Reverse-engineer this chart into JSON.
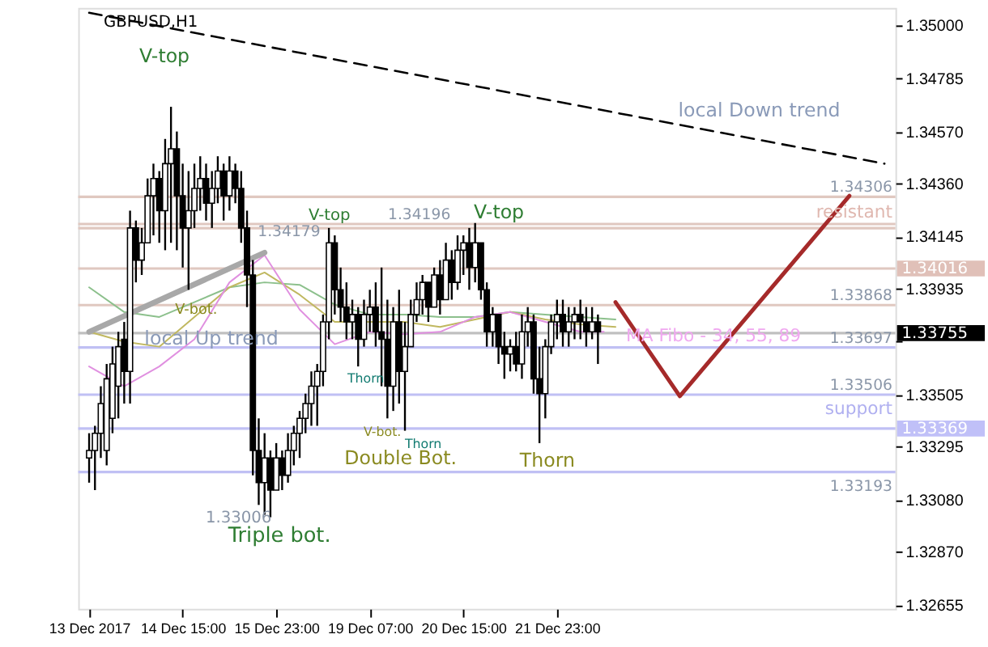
{
  "chart_data": {
    "type": "candlestick",
    "title": "GBPUSD,H1",
    "categories": [
      "13 Dec 2017",
      null,
      null,
      null,
      null,
      null,
      null,
      null,
      null,
      null,
      null,
      null,
      null,
      null,
      null,
      null,
      "14 Dec 15:00",
      null,
      null,
      null,
      null,
      null,
      null,
      null,
      null,
      null,
      null,
      null,
      null,
      null,
      null,
      null,
      "15 Dec 23:00",
      null,
      null,
      null,
      null,
      null,
      null,
      null,
      null,
      null,
      null,
      null,
      null,
      null,
      null,
      null,
      "19 Dec 07:00",
      null,
      null,
      null,
      null,
      null,
      null,
      null,
      null,
      null,
      null,
      null,
      null,
      null,
      null,
      null,
      "20 Dec 15:00",
      null,
      null,
      null,
      null,
      null,
      null,
      null,
      null,
      null,
      null,
      null,
      null,
      null,
      null,
      null,
      "21 Dec 23:00",
      null,
      null,
      null,
      null,
      null,
      null,
      null,
      null,
      null,
      null,
      null,
      null,
      null,
      null,
      null,
      null,
      null,
      null,
      null,
      null,
      null,
      null,
      null,
      null,
      null,
      null,
      null,
      null,
      null,
      null,
      null,
      null,
      null,
      null,
      null,
      null,
      null,
      null,
      null,
      null,
      null,
      null,
      null,
      null,
      null,
      null,
      null,
      null,
      null,
      null,
      null,
      null,
      null,
      null,
      null,
      null
    ],
    "ohlc": [
      [
        1.3325,
        1.3335,
        1.3315,
        1.3328
      ],
      [
        1.3328,
        1.3338,
        1.3312,
        1.3335
      ],
      [
        1.3335,
        1.3354,
        1.3325,
        1.3347
      ],
      [
        1.3328,
        1.3363,
        1.3322,
        1.3357
      ],
      [
        1.3341,
        1.337,
        1.3335,
        1.3363
      ],
      [
        1.3354,
        1.3376,
        1.3341,
        1.337
      ],
      [
        1.3373,
        1.338,
        1.3347,
        1.336
      ],
      [
        1.336,
        1.3425,
        1.3347,
        1.3418
      ],
      [
        1.3418,
        1.3421,
        1.3396,
        1.3405
      ],
      [
        1.3405,
        1.3418,
        1.3399,
        1.3412
      ],
      [
        1.3412,
        1.3438,
        1.3412,
        1.3431
      ],
      [
        1.3431,
        1.3444,
        1.3415,
        1.3438
      ],
      [
        1.3438,
        1.3441,
        1.3412,
        1.3425
      ],
      [
        1.3425,
        1.3454,
        1.3409,
        1.3444
      ],
      [
        1.3444,
        1.3467,
        1.3412,
        1.345
      ],
      [
        1.345,
        1.3457,
        1.3409,
        1.3431
      ],
      [
        1.3431,
        1.3444,
        1.3402,
        1.3418
      ],
      [
        1.3418,
        1.3441,
        1.3393,
        1.3425
      ],
      [
        1.3425,
        1.3444,
        1.3418,
        1.3434
      ],
      [
        1.3434,
        1.3447,
        1.3425,
        1.3438
      ],
      [
        1.3438,
        1.3444,
        1.3421,
        1.3428
      ],
      [
        1.3428,
        1.3441,
        1.3418,
        1.3434
      ],
      [
        1.3434,
        1.3447,
        1.3428,
        1.3441
      ],
      [
        1.3441,
        1.3444,
        1.3421,
        1.3431
      ],
      [
        1.3431,
        1.3447,
        1.3425,
        1.3441
      ],
      [
        1.3441,
        1.3444,
        1.3428,
        1.3434
      ],
      [
        1.3434,
        1.3441,
        1.3412,
        1.3418
      ],
      [
        1.3418,
        1.3425,
        1.3386,
        1.3399
      ],
      [
        1.3399,
        1.3405,
        1.3318,
        1.3328
      ],
      [
        1.3328,
        1.3341,
        1.3306,
        1.3315
      ],
      [
        1.3315,
        1.3335,
        1.3302,
        1.3325
      ],
      [
        1.3325,
        1.3328,
        1.3301,
        1.3312
      ],
      [
        1.3312,
        1.3331,
        1.3312,
        1.3325
      ],
      [
        1.3325,
        1.3328,
        1.3312,
        1.3318
      ],
      [
        1.3318,
        1.3335,
        1.3315,
        1.3328
      ],
      [
        1.3328,
        1.3338,
        1.3322,
        1.3335
      ],
      [
        1.3335,
        1.3344,
        1.3325,
        1.3341
      ],
      [
        1.3341,
        1.3351,
        1.3335,
        1.3347
      ],
      [
        1.3347,
        1.336,
        1.3338,
        1.3354
      ],
      [
        1.3354,
        1.3363,
        1.3338,
        1.336
      ],
      [
        1.336,
        1.3383,
        1.3354,
        1.338
      ],
      [
        1.338,
        1.3418,
        1.3373,
        1.3412
      ],
      [
        1.3412,
        1.3415,
        1.3383,
        1.3393
      ],
      [
        1.3393,
        1.3402,
        1.338,
        1.3386
      ],
      [
        1.3386,
        1.3396,
        1.3373,
        1.338
      ],
      [
        1.338,
        1.3389,
        1.3373,
        1.3383
      ],
      [
        1.3383,
        1.3386,
        1.3362,
        1.3373
      ],
      [
        1.3373,
        1.3389,
        1.337,
        1.3383
      ],
      [
        1.3383,
        1.3393,
        1.3376,
        1.3386
      ],
      [
        1.3386,
        1.3396,
        1.337,
        1.3376
      ],
      [
        1.3376,
        1.3402,
        1.3354,
        1.3373
      ],
      [
        1.3373,
        1.3389,
        1.3341,
        1.3354
      ],
      [
        1.3354,
        1.3386,
        1.3344,
        1.338
      ],
      [
        1.338,
        1.3393,
        1.3347,
        1.336
      ],
      [
        1.336,
        1.338,
        1.3336,
        1.337
      ],
      [
        1.337,
        1.3389,
        1.337,
        1.3383
      ],
      [
        1.3383,
        1.3396,
        1.338,
        1.3389
      ],
      [
        1.3389,
        1.3399,
        1.3383,
        1.3396
      ],
      [
        1.3396,
        1.3396,
        1.338,
        1.3386
      ],
      [
        1.3386,
        1.3402,
        1.3386,
        1.3399
      ],
      [
        1.3399,
        1.3405,
        1.3383,
        1.3389
      ],
      [
        1.3389,
        1.3412,
        1.3389,
        1.3405
      ],
      [
        1.3405,
        1.3409,
        1.3389,
        1.3396
      ],
      [
        1.3396,
        1.3415,
        1.3393,
        1.3409
      ],
      [
        1.3409,
        1.3415,
        1.3399,
        1.3412
      ],
      [
        1.3412,
        1.3418,
        1.3393,
        1.3402
      ],
      [
        1.3402,
        1.342,
        1.3396,
        1.3412
      ],
      [
        1.3412,
        1.3412,
        1.3389,
        1.3393
      ],
      [
        1.3393,
        1.3396,
        1.337,
        1.3376
      ],
      [
        1.3376,
        1.3386,
        1.337,
        1.3383
      ],
      [
        1.3383,
        1.3383,
        1.3363,
        1.337
      ],
      [
        1.337,
        1.3376,
        1.3357,
        1.3367
      ],
      [
        1.3367,
        1.3373,
        1.336,
        1.337
      ],
      [
        1.337,
        1.3376,
        1.336,
        1.3363
      ],
      [
        1.3363,
        1.3383,
        1.3357,
        1.3376
      ],
      [
        1.3376,
        1.3386,
        1.337,
        1.338
      ],
      [
        1.338,
        1.3383,
        1.3351,
        1.3357
      ],
      [
        1.3357,
        1.337,
        1.3331,
        1.3351
      ],
      [
        1.3351,
        1.3373,
        1.3341,
        1.337
      ],
      [
        1.337,
        1.3383,
        1.3367,
        1.338
      ],
      [
        1.338,
        1.3389,
        1.3373,
        1.3383
      ],
      [
        1.3383,
        1.3389,
        1.337,
        1.3376
      ],
      [
        1.3376,
        1.3386,
        1.337,
        1.338
      ],
      [
        1.338,
        1.3386,
        1.3373,
        1.3383
      ],
      [
        1.3383,
        1.3389,
        1.3373,
        1.338
      ],
      [
        1.338,
        1.3386,
        1.337,
        1.3376
      ],
      [
        1.3376,
        1.3386,
        1.3373,
        1.338
      ],
      [
        1.338,
        1.3383,
        1.3363,
        1.3376
      ],
      null,
      null,
      null,
      null,
      null,
      null,
      null,
      null,
      null,
      null,
      null,
      null,
      null,
      null,
      null,
      null,
      null,
      null,
      null,
      null,
      null,
      null,
      null,
      null,
      null,
      null,
      null,
      null,
      null,
      null,
      null,
      null,
      null,
      null,
      null,
      null,
      null,
      null,
      null,
      null,
      null,
      null,
      null,
      null,
      null,
      null,
      null,
      null,
      null
    ],
    "series": [
      {
        "type": "line",
        "color": "#8cc08c",
        "values": [
          1.3394,
          null,
          null,
          null,
          null,
          null,
          1.3384,
          null,
          null,
          null,
          null,
          null,
          1.3382,
          null,
          null,
          null,
          null,
          null,
          1.3388,
          null,
          null,
          null,
          null,
          null,
          1.3394,
          null,
          null,
          null,
          null,
          null,
          1.3396,
          null,
          null,
          null,
          null,
          null,
          1.3395,
          null,
          null,
          null,
          null,
          null,
          1.3387,
          null,
          null,
          null,
          null,
          null,
          1.3383,
          null,
          null,
          null,
          null,
          null,
          1.3383,
          null,
          null,
          null,
          null,
          null,
          1.3382,
          null,
          null,
          null,
          null,
          null,
          1.3382,
          null,
          null,
          null,
          null,
          null,
          1.3384,
          null,
          null,
          null,
          null,
          null,
          1.3383,
          null,
          null,
          null,
          null,
          null,
          1.3382,
          null,
          null,
          null,
          null,
          null,
          1.3381,
          null,
          null,
          null,
          null,
          null,
          null,
          null,
          null,
          null,
          null,
          null,
          null,
          null,
          null,
          null,
          null,
          null,
          null,
          null,
          null,
          null,
          null,
          null,
          null,
          null,
          null,
          null,
          null,
          null,
          null,
          null,
          null,
          null,
          null,
          null,
          null,
          null,
          null,
          null,
          null,
          null,
          null,
          null,
          null,
          null,
          null
        ]
      },
      {
        "type": "line",
        "color": "#c0b860",
        "values": [
          1.3376,
          null,
          null,
          null,
          null,
          null,
          1.3372,
          null,
          null,
          null,
          null,
          null,
          1.337,
          null,
          null,
          null,
          null,
          null,
          1.3382,
          null,
          null,
          null,
          null,
          null,
          1.3394,
          null,
          null,
          null,
          null,
          null,
          1.34,
          null,
          null,
          null,
          null,
          null,
          1.3391,
          null,
          null,
          null,
          null,
          null,
          1.338,
          null,
          null,
          null,
          null,
          null,
          1.338,
          null,
          null,
          null,
          null,
          null,
          1.338,
          null,
          null,
          null,
          null,
          null,
          1.3378,
          null,
          null,
          null,
          null,
          null,
          1.3381,
          null,
          null,
          null,
          null,
          null,
          1.3384,
          null,
          null,
          null,
          null,
          null,
          1.3381,
          null,
          null,
          null,
          null,
          null,
          1.3379,
          null,
          null,
          null,
          null,
          null,
          1.3378,
          null,
          null,
          null,
          null,
          null,
          null,
          null,
          null,
          null,
          null,
          null,
          null,
          null,
          null,
          null,
          null,
          null,
          null,
          null,
          null,
          null,
          null,
          null,
          null,
          null,
          null,
          null,
          null,
          null,
          null,
          null,
          null,
          null,
          null,
          null,
          null,
          null,
          null,
          null,
          null,
          null,
          null,
          null,
          null,
          null,
          null
        ]
      },
      {
        "type": "line",
        "color": "#e090e0",
        "values": [
          1.3362,
          null,
          null,
          null,
          null,
          null,
          1.3354,
          null,
          null,
          null,
          null,
          null,
          1.3362,
          null,
          null,
          null,
          null,
          null,
          1.3373,
          null,
          null,
          null,
          null,
          null,
          1.3396,
          null,
          null,
          null,
          null,
          null,
          1.3407,
          null,
          null,
          null,
          null,
          null,
          1.3385,
          null,
          null,
          null,
          null,
          null,
          1.3371,
          null,
          null,
          null,
          null,
          null,
          1.3376,
          null,
          null,
          null,
          null,
          null,
          1.3375,
          null,
          null,
          null,
          null,
          null,
          1.3376,
          null,
          null,
          null,
          null,
          null,
          1.3382,
          null,
          null,
          null,
          null,
          null,
          1.3384,
          null,
          null,
          null,
          null,
          null,
          1.338,
          null,
          null,
          null,
          null,
          null,
          1.3376,
          null,
          null,
          null,
          1.3376,
          null,
          null,
          null,
          null,
          null,
          null,
          null,
          null,
          null,
          null,
          null,
          null,
          null,
          null,
          null,
          null,
          null,
          null,
          null,
          null,
          null,
          null,
          null,
          null,
          null,
          null,
          null,
          null,
          null,
          null,
          null,
          null,
          null,
          null,
          null,
          null,
          null,
          null,
          null,
          null,
          null,
          null,
          null,
          null,
          null,
          null,
          null,
          null
        ]
      },
      {
        "type": "line",
        "color": "#000000",
        "line_style": "dashed",
        "values": [
          1.3505,
          null,
          null,
          null,
          null,
          null,
          null,
          null,
          null,
          null,
          null,
          null,
          null,
          null,
          null,
          null,
          null,
          null,
          null,
          null,
          null,
          null,
          null,
          null,
          null,
          null,
          null,
          null,
          null,
          null,
          null,
          null,
          null,
          null,
          null,
          null,
          null,
          null,
          null,
          null,
          null,
          null,
          null,
          null,
          null,
          null,
          null,
          null,
          null,
          null,
          null,
          null,
          null,
          null,
          null,
          null,
          null,
          null,
          null,
          null,
          null,
          null,
          null,
          null,
          null,
          null,
          null,
          null,
          null,
          null,
          null,
          null,
          null,
          null,
          null,
          null,
          null,
          null,
          null,
          null,
          null,
          null,
          null,
          null,
          null,
          null,
          null,
          null,
          null,
          null,
          null,
          null,
          null,
          null,
          null,
          null,
          null,
          null,
          null,
          null,
          null,
          null,
          null,
          null,
          null,
          null,
          null,
          null,
          null,
          null,
          null,
          null,
          null,
          null,
          null,
          null,
          null,
          null,
          null,
          null,
          null,
          null,
          null,
          null,
          null,
          null,
          null,
          null,
          null,
          null,
          null,
          null,
          null,
          null,
          null,
          null,
          1.3444
        ]
      },
      {
        "type": "line",
        "color": "#a8a8a8",
        "values": [
          1.3376,
          null,
          null,
          null,
          null,
          null,
          null,
          null,
          null,
          null,
          null,
          null,
          null,
          null,
          null,
          null,
          null,
          null,
          null,
          null,
          null,
          null,
          null,
          null,
          null,
          null,
          null,
          null,
          null,
          null,
          1.3408,
          null,
          null,
          null,
          null,
          null,
          null,
          null,
          null,
          null,
          null,
          null,
          null,
          null,
          null,
          null,
          null,
          null,
          null,
          null,
          null,
          null,
          null,
          null,
          null,
          null,
          null,
          null,
          null,
          null,
          null,
          null,
          null,
          null,
          null,
          null,
          null,
          null,
          null,
          null,
          null,
          null,
          null,
          null,
          null,
          null,
          null,
          null,
          null,
          null,
          null,
          null,
          null,
          null,
          null,
          null,
          null,
          null,
          null,
          null,
          null,
          null,
          null,
          null,
          null,
          null,
          null,
          null,
          null,
          null,
          null,
          null,
          null,
          null,
          null,
          null,
          null,
          null,
          null,
          null,
          null,
          null,
          null,
          null,
          null,
          null,
          null,
          null,
          null,
          null,
          null,
          null,
          null,
          null,
          null,
          null,
          null,
          null,
          null,
          null,
          null,
          null,
          null,
          null,
          null,
          null,
          null
        ]
      },
      {
        "type": "line",
        "color": "#a52a2a",
        "values": [
          null,
          null,
          null,
          null,
          null,
          null,
          null,
          null,
          null,
          null,
          null,
          null,
          null,
          null,
          null,
          null,
          null,
          null,
          null,
          null,
          null,
          null,
          null,
          null,
          null,
          null,
          null,
          null,
          null,
          null,
          null,
          null,
          null,
          null,
          null,
          null,
          null,
          null,
          null,
          null,
          null,
          null,
          null,
          null,
          null,
          null,
          null,
          null,
          null,
          null,
          null,
          null,
          null,
          null,
          null,
          null,
          null,
          null,
          null,
          null,
          null,
          null,
          null,
          null,
          null,
          null,
          null,
          null,
          null,
          null,
          null,
          null,
          null,
          null,
          null,
          null,
          null,
          null,
          null,
          null,
          null,
          null,
          null,
          null,
          null,
          null,
          null,
          null,
          null,
          null,
          1.3388,
          null,
          null,
          null,
          null,
          null,
          null,
          null,
          null,
          null,
          null,
          1.335,
          null,
          null,
          null,
          null,
          null,
          null,
          null,
          null,
          null,
          null,
          null,
          null,
          null,
          null,
          null,
          null,
          null,
          null,
          null,
          null,
          null,
          null,
          null,
          null,
          null,
          null,
          null,
          null,
          1.3431,
          null,
          null,
          null,
          null,
          null,
          null
        ]
      }
    ],
    "ylim": [
      1.3264,
      1.3507
    ],
    "yticks": [
      {
        "value": 1.35,
        "label": "1.35000"
      },
      {
        "value": 1.34785,
        "label": "1.34785"
      },
      {
        "value": 1.3457,
        "label": "1.34570"
      },
      {
        "value": 1.3436,
        "label": "1.34360"
      },
      {
        "value": 1.34145,
        "label": "1.34145"
      },
      {
        "value": 1.33935,
        "label": "1.33935"
      },
      {
        "value": 1.3372,
        "label": null
      },
      {
        "value": 1.33505,
        "label": "1.33505"
      },
      {
        "value": 1.33295,
        "label": "1.33295"
      },
      {
        "value": 1.3308,
        "label": "1.33080"
      },
      {
        "value": 1.3287,
        "label": "1.32870"
      },
      {
        "value": 1.32655,
        "label": "1.32655"
      }
    ],
    "ref_lines": [
      {
        "axis": "y",
        "value": 1.34306,
        "label": "1.34306",
        "color": "#e0c8c0"
      },
      {
        "axis": "y",
        "value": 1.34196,
        "label": "1.34196",
        "color": "#e0c8c0"
      },
      {
        "axis": "y",
        "value": 1.34179,
        "label": "1.34179",
        "color": "#e0c8c0"
      },
      {
        "axis": "y",
        "value": 1.34016,
        "label": "1.34016",
        "color": "#e0c8c0"
      },
      {
        "axis": "y",
        "value": 1.33868,
        "label": "1.33868",
        "color": "#e0c8c0"
      },
      {
        "axis": "y",
        "value": 1.33755,
        "label": "1.33755",
        "color": "#c0c0c0"
      },
      {
        "axis": "y",
        "value": 1.33697,
        "label": "1.33697",
        "color": "#c0c0f4"
      },
      {
        "axis": "y",
        "value": 1.33506,
        "label": "1.33506",
        "color": "#c0c0f4"
      },
      {
        "axis": "y",
        "value": 1.33369,
        "label": "1.33369",
        "color": "#c0c0f4"
      },
      {
        "axis": "y",
        "value": 1.33193,
        "label": "1.33193",
        "color": "#c0c0f4"
      }
    ],
    "annotations": [
      "local Down trend",
      {
        "text": "local  Up trend",
        "y": 1.3376
      },
      {
        "text": "resistant",
        "y": 1.34196
      },
      {
        "text": "support",
        "y": 1.33506
      },
      {
        "text": "MA Fibo - 34, 55, 89",
        "y": 1.3378
      },
      {
        "text": "V-top",
        "y": 1.3467
      },
      {
        "text": "V-top",
        "y": 1.3418
      },
      {
        "text": "V-top",
        "y": 1.342
      },
      "V-bot.",
      {
        "text": "V-bot.",
        "y": 1.3336
      },
      "Thorn",
      {
        "text": "Thorn",
        "y": 1.3336
      },
      {
        "text": "Double Bot.",
        "y": 1.3336
      },
      "Thorn",
      "Triple bot.",
      "1.33006"
    ]
  }
}
